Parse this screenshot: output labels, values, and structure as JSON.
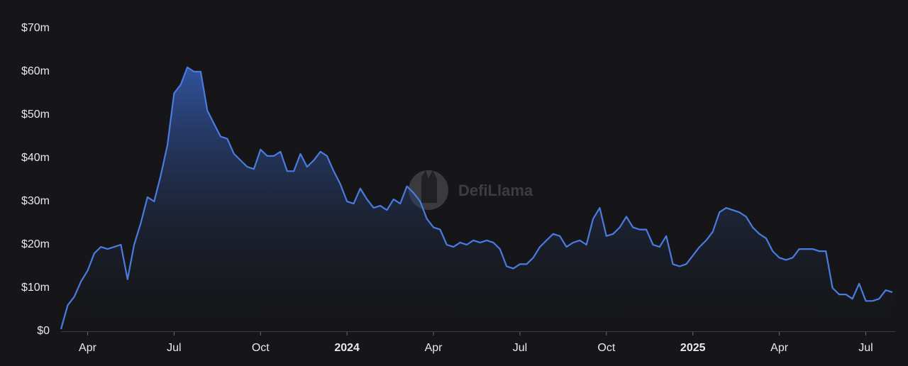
{
  "chart_data": {
    "type": "area",
    "watermark": "DefiLlama",
    "color": "#4a7be0",
    "categories": [
      null,
      null,
      null,
      null,
      "Apr",
      null,
      null,
      null,
      null,
      null,
      null,
      null,
      null,
      null,
      null,
      null,
      null,
      "Jul",
      null,
      null,
      null,
      null,
      null,
      null,
      null,
      null,
      null,
      null,
      null,
      null,
      "Oct",
      null,
      null,
      null,
      null,
      null,
      null,
      null,
      null,
      null,
      null,
      null,
      null,
      "2024",
      null,
      null,
      null,
      null,
      null,
      null,
      null,
      null,
      null,
      null,
      null,
      null,
      "Apr",
      null,
      null,
      null,
      null,
      null,
      null,
      null,
      null,
      null,
      null,
      null,
      null,
      "Jul",
      null,
      null,
      null,
      null,
      null,
      null,
      null,
      null,
      null,
      null,
      null,
      null,
      "Oct",
      null,
      null,
      null,
      null,
      null,
      null,
      null,
      null,
      null,
      null,
      null,
      null,
      "2025",
      null,
      null,
      null,
      null,
      null,
      null,
      null,
      null,
      null,
      null,
      null,
      null,
      "Apr",
      null,
      null,
      null,
      null,
      null,
      null,
      null,
      null,
      null,
      null,
      null,
      null,
      "Jul",
      null,
      null,
      null,
      null
    ],
    "values": [
      500000.0,
      6000000.0,
      8000000.0,
      11500000.0,
      14000000.0,
      18000000.0,
      19500000.0,
      19000000.0,
      19500000.0,
      20000000.0,
      12000000.0,
      20000000.0,
      25000000.0,
      31000000.0,
      30000000.0,
      36000000.0,
      43000000.0,
      55000000.0,
      57000000.0,
      61000000.0,
      60000000.0,
      60000000.0,
      51000000.0,
      48000000.0,
      45000000.0,
      44500000.0,
      41000000.0,
      39500000.0,
      38000000.0,
      37500000.0,
      42000000.0,
      40500000.0,
      40500000.0,
      41500000.0,
      37000000.0,
      37000000.0,
      41000000.0,
      38000000.0,
      39500000.0,
      41500000.0,
      40500000.0,
      37000000.0,
      34000000.0,
      30000000.0,
      29500000.0,
      33000000.0,
      30500000.0,
      28500000.0,
      29000000.0,
      28000000.0,
      30500000.0,
      29500000.0,
      33500000.0,
      32000000.0,
      30000000.0,
      26000000.0,
      24000000.0,
      23500000.0,
      20000000.0,
      19500000.0,
      20500000.0,
      20000000.0,
      21000000.0,
      20500000.0,
      21000000.0,
      20500000.0,
      19000000.0,
      15000000.0,
      14500000.0,
      15500000.0,
      15500000.0,
      17000000.0,
      19500000.0,
      21000000.0,
      22500000.0,
      22000000.0,
      19500000.0,
      20500000.0,
      21000000.0,
      20000000.0,
      26000000.0,
      28500000.0,
      22000000.0,
      22500000.0,
      24000000.0,
      26500000.0,
      24000000.0,
      23500000.0,
      23500000.0,
      20000000.0,
      19500000.0,
      22000000.0,
      15500000.0,
      15000000.0,
      15500000.0,
      17500000.0,
      19500000.0,
      21000000.0,
      23000000.0,
      27500000.0,
      28500000.0,
      28000000.0,
      27500000.0,
      26500000.0,
      24000000.0,
      22500000.0,
      21500000.0,
      18500000.0,
      17000000.0,
      16500000.0,
      17000000.0,
      19000000.0,
      19000000.0,
      19000000.0,
      18500000.0,
      18500000.0,
      10000000.0,
      8500000.0,
      8500000.0,
      7500000.0,
      11000000.0,
      7000000.0,
      7000000.0,
      7500000.0,
      9500000.0,
      9000000.0
    ],
    "ylim": [
      0,
      70000000
    ],
    "yticks": [
      {
        "value": 0,
        "label": "$0"
      },
      {
        "value": 10000000,
        "label": "$10m"
      },
      {
        "value": 20000000,
        "label": "$20m"
      },
      {
        "value": 30000000,
        "label": "$30m"
      },
      {
        "value": 40000000,
        "label": "$40m"
      },
      {
        "value": 50000000,
        "label": "$50m"
      },
      {
        "value": 60000000,
        "label": "$60m"
      },
      {
        "value": 70000000,
        "label": "$70m"
      }
    ]
  }
}
